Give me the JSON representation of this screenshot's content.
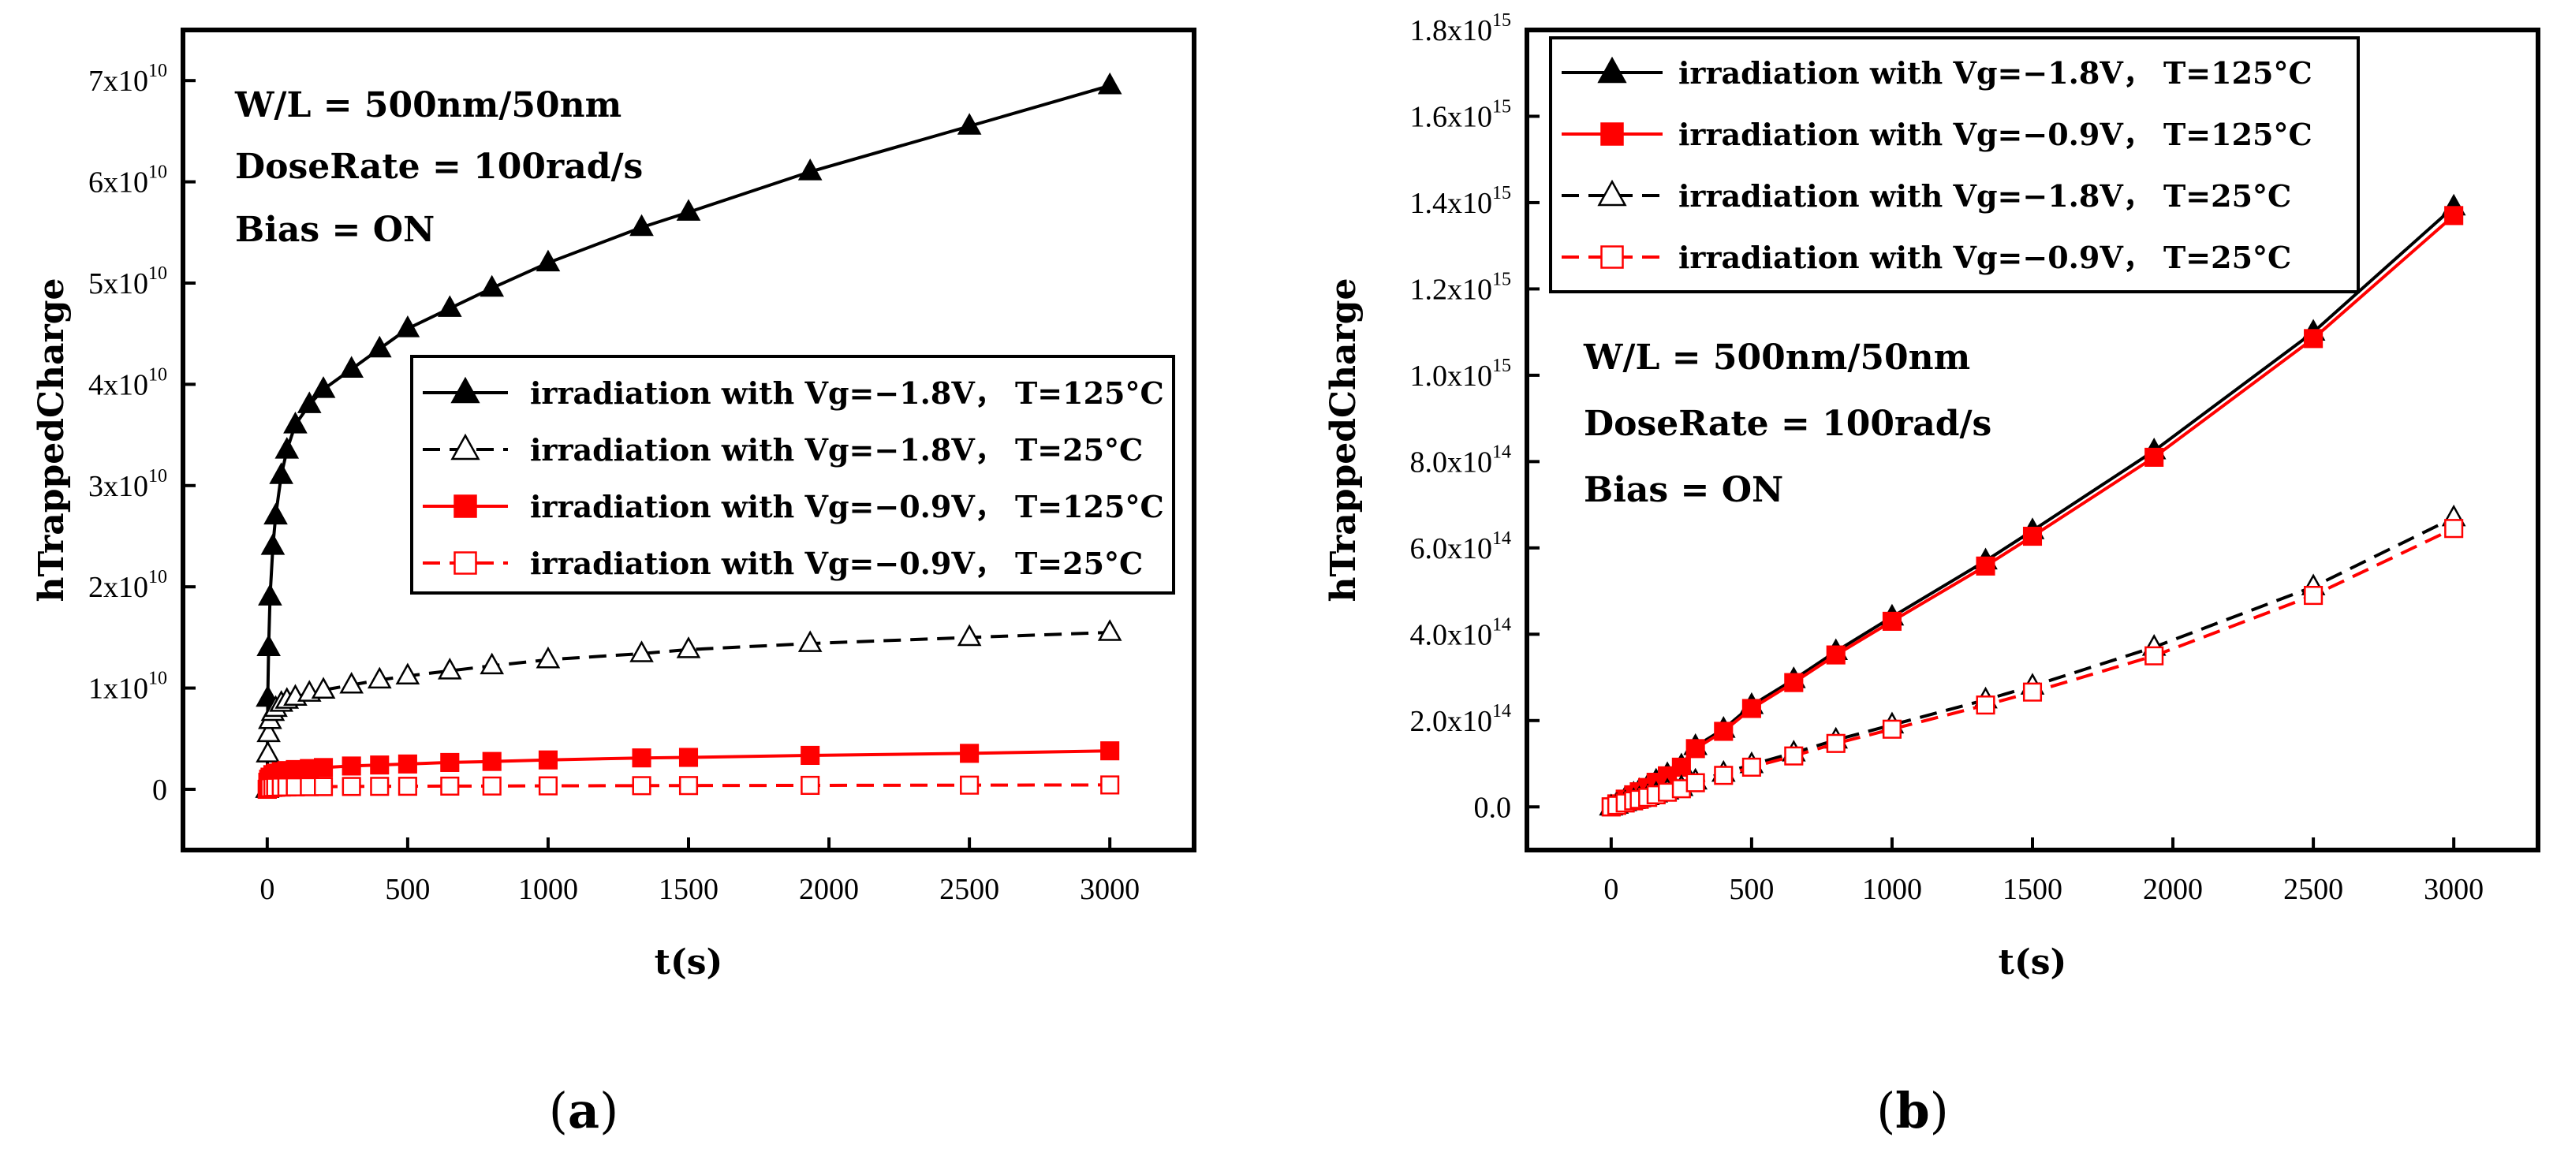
{
  "chart_data": [
    {
      "type": "line",
      "panel_caption": {
        "open": "(",
        "letter": "a",
        "close": ")"
      },
      "xlabel": "t(s)",
      "ylabel": "hTrappedCharge",
      "xlim": [
        -300,
        3300
      ],
      "ylim": [
        -6000000000,
        75000000000
      ],
      "xticks": [
        0,
        500,
        1000,
        1500,
        2000,
        2500,
        3000
      ],
      "xtick_labels": [
        "0",
        "500",
        "1000",
        "1500",
        "2000",
        "2500",
        "3000"
      ],
      "yticks": [
        0,
        10000000000,
        20000000000,
        30000000000,
        40000000000,
        50000000000,
        60000000000,
        70000000000
      ],
      "ytick_labels": [
        {
          "mant": "0",
          "exp": ""
        },
        {
          "mant": "1x10",
          "exp": "10"
        },
        {
          "mant": "2x10",
          "exp": "10"
        },
        {
          "mant": "3x10",
          "exp": "10"
        },
        {
          "mant": "4x10",
          "exp": "10"
        },
        {
          "mant": "5x10",
          "exp": "10"
        },
        {
          "mant": "6x10",
          "exp": "10"
        },
        {
          "mant": "7x10",
          "exp": "10"
        }
      ],
      "annotations": [
        "W/L = 500nm/50nm",
        "DoseRate = 100rad/s",
        "Bias = ON"
      ],
      "annotation_position": "top-left",
      "legend_position": "center-right",
      "x": [
        0,
        2,
        5,
        10,
        20,
        30,
        50,
        70,
        100,
        150,
        200,
        300,
        400,
        500,
        650,
        800,
        1000,
        1333,
        1500,
        1933,
        2500,
        3000
      ],
      "series": [
        {
          "name": "irradiation with Vg=−1.8V， T=125°C",
          "color": "#000000",
          "dash": "solid",
          "marker": "triangle",
          "filled": true,
          "values": [
            0,
            9000000000,
            14000000000,
            19000000000,
            24000000000,
            27000000000,
            31000000000,
            33500000000,
            36000000000,
            38000000000,
            39500000000,
            41500000000,
            43500000000,
            45500000000,
            47500000000,
            49500000000,
            52000000000,
            55500000000,
            57000000000,
            61000000000,
            65500000000,
            69500000000
          ]
        },
        {
          "name": "irradiation with Vg=−1.8V， T=25°C",
          "color": "#000000",
          "dash": "dashed",
          "marker": "triangle",
          "filled": false,
          "values": [
            0,
            3500000000,
            5500000000,
            6800000000,
            7600000000,
            8000000000,
            8500000000,
            8800000000,
            9100000000,
            9500000000,
            9800000000,
            10300000000,
            10800000000,
            11200000000,
            11700000000,
            12200000000,
            12800000000,
            13400000000,
            13800000000,
            14400000000,
            15000000000,
            15500000000
          ]
        },
        {
          "name": "irradiation with Vg=−0.9V， T=125°C",
          "color": "#ff0000",
          "dash": "solid",
          "marker": "square",
          "filled": true,
          "values": [
            0,
            700000000,
            1000000000,
            1200000000,
            1450000000,
            1600000000,
            1750000000,
            1850000000,
            1950000000,
            2050000000,
            2150000000,
            2300000000,
            2400000000,
            2500000000,
            2650000000,
            2750000000,
            2900000000,
            3100000000,
            3150000000,
            3350000000,
            3550000000,
            3800000000
          ]
        },
        {
          "name": "irradiation with Vg=−0.9V， T=25°C",
          "color": "#ff0000",
          "dash": "dashed",
          "marker": "square",
          "filled": false,
          "values": [
            0,
            80000000,
            120000000,
            150000000,
            180000000,
            200000000,
            220000000,
            230000000,
            240000000,
            255000000,
            265000000,
            280000000,
            290000000,
            300000000,
            315000000,
            325000000,
            340000000,
            360000000,
            370000000,
            390000000,
            410000000,
            430000000
          ]
        }
      ]
    },
    {
      "type": "line",
      "panel_caption": {
        "open": "(",
        "letter": "b",
        "close": ")"
      },
      "xlabel": "t(s)",
      "ylabel": "hTrappedCharge",
      "xlim": [
        -300,
        3300
      ],
      "ylim": [
        -100000000000000,
        1800000000000000
      ],
      "xticks": [
        0,
        500,
        1000,
        1500,
        2000,
        2500,
        3000
      ],
      "xtick_labels": [
        "0",
        "500",
        "1000",
        "1500",
        "2000",
        "2500",
        "3000"
      ],
      "yticks": [
        0,
        200000000000000,
        400000000000000,
        600000000000000,
        800000000000000,
        1000000000000000,
        1200000000000000,
        1400000000000000,
        1600000000000000,
        1800000000000000
      ],
      "ytick_labels": [
        {
          "mant": "0.0",
          "exp": ""
        },
        {
          "mant": "2.0x10",
          "exp": "14"
        },
        {
          "mant": "4.0x10",
          "exp": "14"
        },
        {
          "mant": "6.0x10",
          "exp": "14"
        },
        {
          "mant": "8.0x10",
          "exp": "14"
        },
        {
          "mant": "1.0x10",
          "exp": "15"
        },
        {
          "mant": "1.2x10",
          "exp": "15"
        },
        {
          "mant": "1.4x10",
          "exp": "15"
        },
        {
          "mant": "1.6x10",
          "exp": "15"
        },
        {
          "mant": "1.8x10",
          "exp": "15"
        }
      ],
      "annotations": [
        "W/L = 500nm/50nm",
        "DoseRate = 100rad/s",
        "Bias = ON"
      ],
      "annotation_position": "upper-left, below legend",
      "legend_position": "top-left",
      "x": [
        0,
        20,
        50,
        80,
        100,
        130,
        160,
        200,
        250,
        300,
        400,
        500,
        650,
        800,
        1000,
        1333,
        1500,
        1933,
        2500,
        3000
      ],
      "series": [
        {
          "name": "irradiation with Vg=−1.8V， T=125°C",
          "color": "#000000",
          "dash": "solid",
          "marker": "triangle",
          "filled": true,
          "values": [
            0,
            8000000000000,
            20000000000000,
            30000000000000,
            38000000000000,
            48000000000000,
            60000000000000,
            75000000000000,
            95000000000000,
            140000000000000,
            180000000000000,
            235000000000000,
            295000000000000,
            360000000000000,
            440000000000000,
            570000000000000,
            640000000000000,
            825000000000000,
            1100000000000000,
            1390000000000000
          ]
        },
        {
          "name": "irradiation with Vg=−0.9V， T=125°C",
          "color": "#ff0000",
          "dash": "solid",
          "marker": "square",
          "filled": true,
          "values": [
            0,
            7000000000000,
            18000000000000,
            28000000000000,
            35000000000000,
            45000000000000,
            57000000000000,
            72000000000000,
            92000000000000,
            135000000000000,
            175000000000000,
            228000000000000,
            288000000000000,
            352000000000000,
            430000000000000,
            558000000000000,
            627000000000000,
            810000000000000,
            1085000000000000,
            1370000000000000
          ]
        },
        {
          "name": "irradiation with Vg=−1.8V， T=25°C",
          "color": "#000000",
          "dash": "dashed",
          "marker": "triangle",
          "filled": false,
          "values": [
            0,
            4000000000000,
            10000000000000,
            15000000000000,
            19000000000000,
            24000000000000,
            30000000000000,
            37000000000000,
            45000000000000,
            60000000000000,
            78000000000000,
            98000000000000,
            125000000000000,
            155000000000000,
            190000000000000,
            248000000000000,
            280000000000000,
            370000000000000,
            510000000000000,
            670000000000000
          ]
        },
        {
          "name": "irradiation with Vg=−0.9V， T=25°C",
          "color": "#ff0000",
          "dash": "dashed",
          "marker": "square",
          "filled": false,
          "values": [
            0,
            3500000000000,
            9000000000000,
            14000000000000,
            17500000000000,
            22000000000000,
            28000000000000,
            34000000000000,
            42000000000000,
            56000000000000,
            73000000000000,
            92000000000000,
            118000000000000,
            147000000000000,
            180000000000000,
            236000000000000,
            266000000000000,
            350000000000000,
            490000000000000,
            645000000000000
          ]
        }
      ]
    }
  ]
}
